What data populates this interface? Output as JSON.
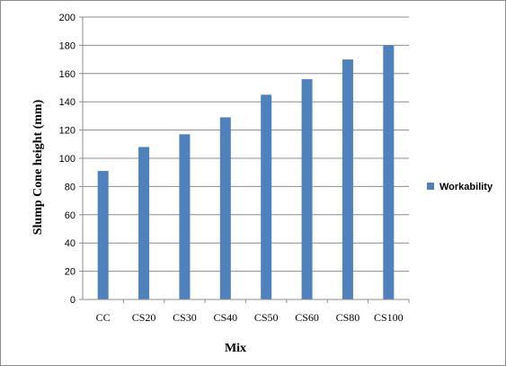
{
  "chart_data": {
    "type": "bar",
    "title": "",
    "xlabel": "Mix",
    "ylabel": "Slump Cone height (mm)",
    "categories": [
      "CC",
      "CS20",
      "CS30",
      "CS40",
      "CS50",
      "CS60",
      "CS80",
      "CS100"
    ],
    "series": [
      {
        "name": "Workability",
        "values": [
          91,
          108,
          117,
          129,
          145,
          156,
          170,
          180
        ],
        "color": "#4f81bd"
      }
    ],
    "ylim": [
      0,
      200
    ],
    "yticks": [
      "0",
      "20",
      "40",
      "60",
      "80",
      "100",
      "120",
      "140",
      "160",
      "180",
      "200"
    ],
    "grid": true,
    "legend_position": "right"
  }
}
